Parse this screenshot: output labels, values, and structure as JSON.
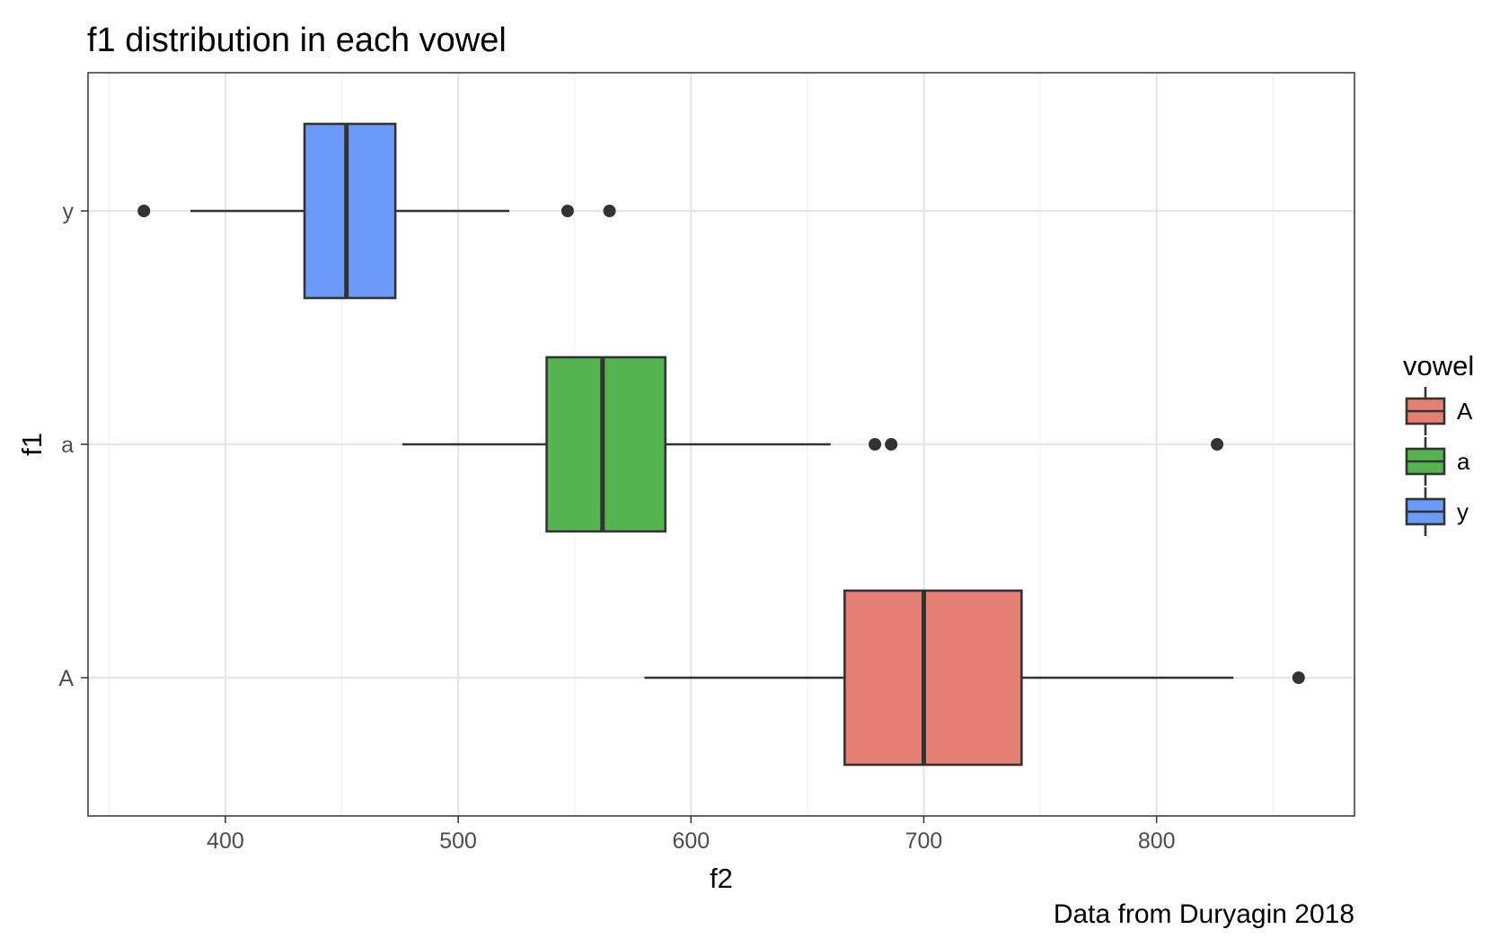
{
  "chart_data": {
    "type": "boxplot",
    "orientation": "horizontal",
    "title": "f1 distribution in each vowel",
    "caption": "Data from Duryagin 2018",
    "xlabel": "f2",
    "ylabel": "f1",
    "xlim": [
      341,
      885
    ],
    "x_ticks": [
      400,
      500,
      600,
      700,
      800
    ],
    "x_minor_ticks": [
      350,
      450,
      550,
      650,
      750,
      850
    ],
    "grid": true,
    "categories": [
      "A",
      "a",
      "y"
    ],
    "legend": {
      "title": "vowel",
      "position": "right",
      "entries": [
        "A",
        "a",
        "y"
      ]
    },
    "series": [
      {
        "name": "A",
        "color": "#E57F73",
        "whisker_low": 580,
        "q1": 666,
        "median": 700,
        "q3": 742,
        "whisker_high": 833,
        "outliers": [
          861
        ]
      },
      {
        "name": "a",
        "color": "#55B44F",
        "whisker_low": 476,
        "q1": 538,
        "median": 562,
        "q3": 589,
        "whisker_high": 660,
        "outliers": [
          679,
          686,
          826
        ]
      },
      {
        "name": "y",
        "color": "#6C9AF8",
        "whisker_low": 385,
        "q1": 434,
        "median": 452,
        "q3": 473,
        "whisker_high": 522,
        "outliers": [
          365,
          547,
          565
        ]
      }
    ]
  }
}
